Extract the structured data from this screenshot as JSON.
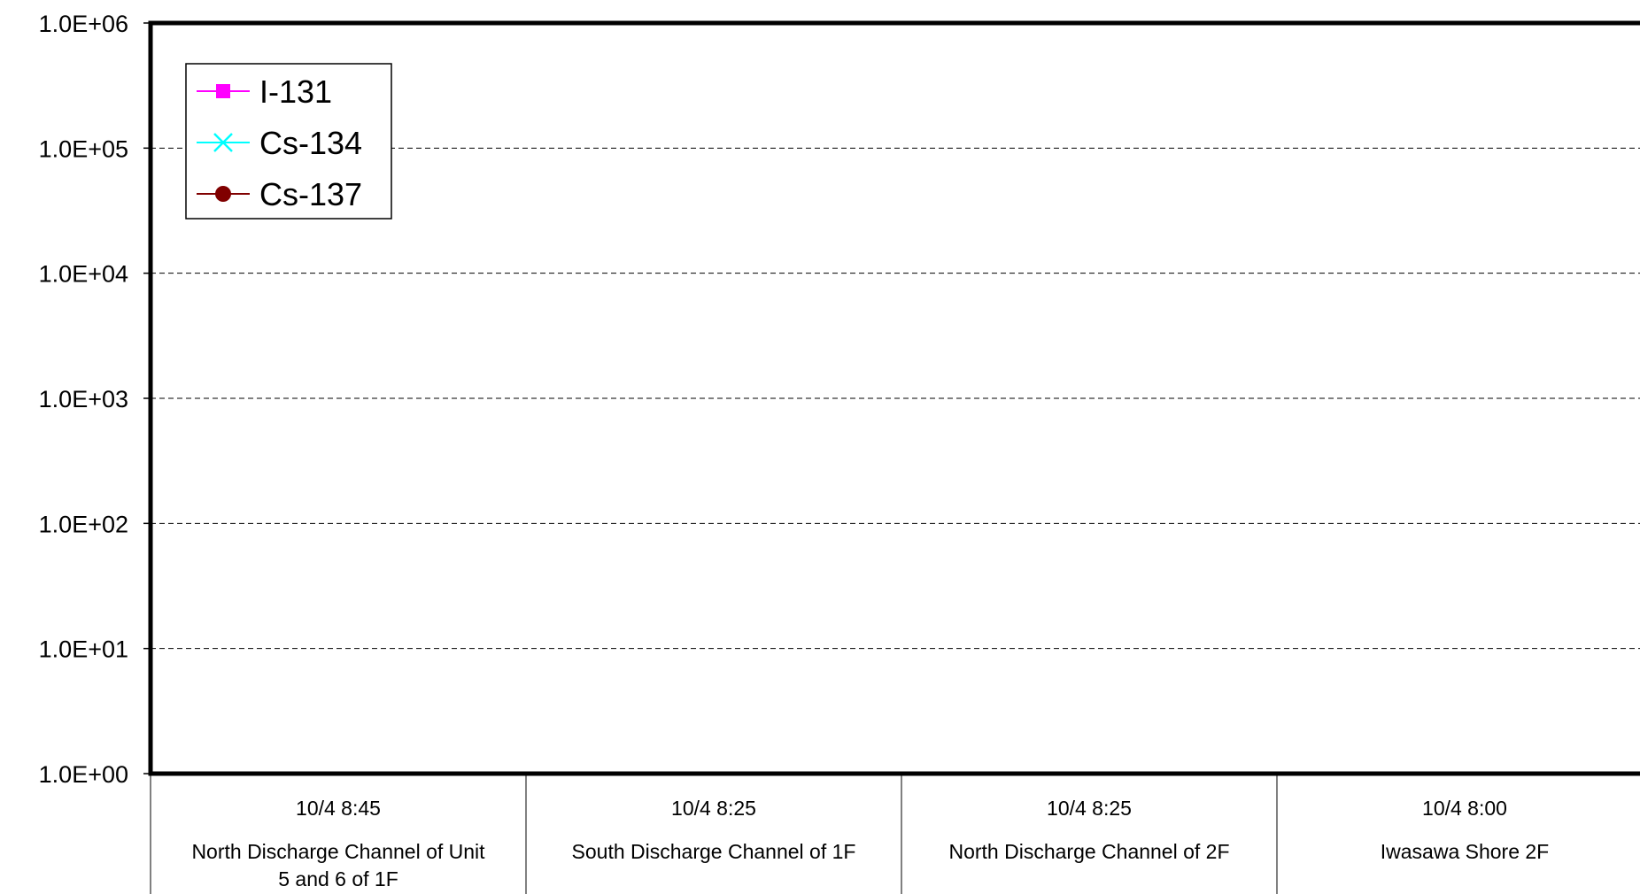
{
  "chart_data": {
    "type": "line",
    "title": "",
    "xlabel": "",
    "ylabel": "",
    "y_scale": "log",
    "ylim": [
      1,
      1000000
    ],
    "y_ticks": [
      "1.0E+00",
      "1.0E+01",
      "1.0E+02",
      "1.0E+03",
      "1.0E+04",
      "1.0E+05",
      "1.0E+06"
    ],
    "grid": "horizontal dashed",
    "legend_position": "top-left",
    "categories": [
      {
        "time": "10/4 8:45",
        "lines": [
          "North Discharge Channel of Unit",
          "5 and 6 of 1F"
        ]
      },
      {
        "time": "10/4 8:25",
        "lines": [
          "South Discharge Channel of 1F"
        ]
      },
      {
        "time": "10/4 8:25",
        "lines": [
          "North Discharge Channel of 2F"
        ]
      },
      {
        "time": "10/4 8:00",
        "lines": [
          "Iwasawa Shore 2F"
        ]
      }
    ],
    "series": [
      {
        "name": "I-131",
        "color": "#ff00ff",
        "marker": "square",
        "values": [
          null,
          null,
          null,
          null
        ]
      },
      {
        "name": "Cs-134",
        "color": "#00ffff",
        "marker": "x",
        "values": [
          null,
          null,
          null,
          null
        ]
      },
      {
        "name": "Cs-137",
        "color": "#800000",
        "marker": "circle",
        "values": [
          null,
          null,
          null,
          null
        ]
      }
    ]
  }
}
